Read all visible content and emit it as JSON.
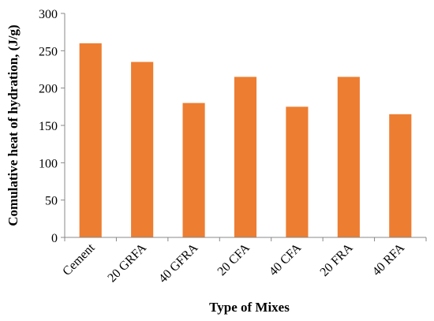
{
  "chart_data": {
    "type": "bar",
    "title": "",
    "xlabel": "Type of Mixes",
    "ylabel": "Comulative heat of hydration, (J/g)",
    "categories": [
      "Cement",
      "20 GRFA",
      "40 GFRA",
      "20 CFA",
      "40 CFA",
      "20 FRA",
      "40 RFA"
    ],
    "values": [
      260,
      235,
      180,
      215,
      175,
      215,
      165
    ],
    "ylim": [
      0,
      300
    ],
    "yticks": [
      0,
      50,
      100,
      150,
      200,
      250,
      300
    ],
    "bar_color": "#ed7d31",
    "grid": false,
    "legend": "none"
  }
}
